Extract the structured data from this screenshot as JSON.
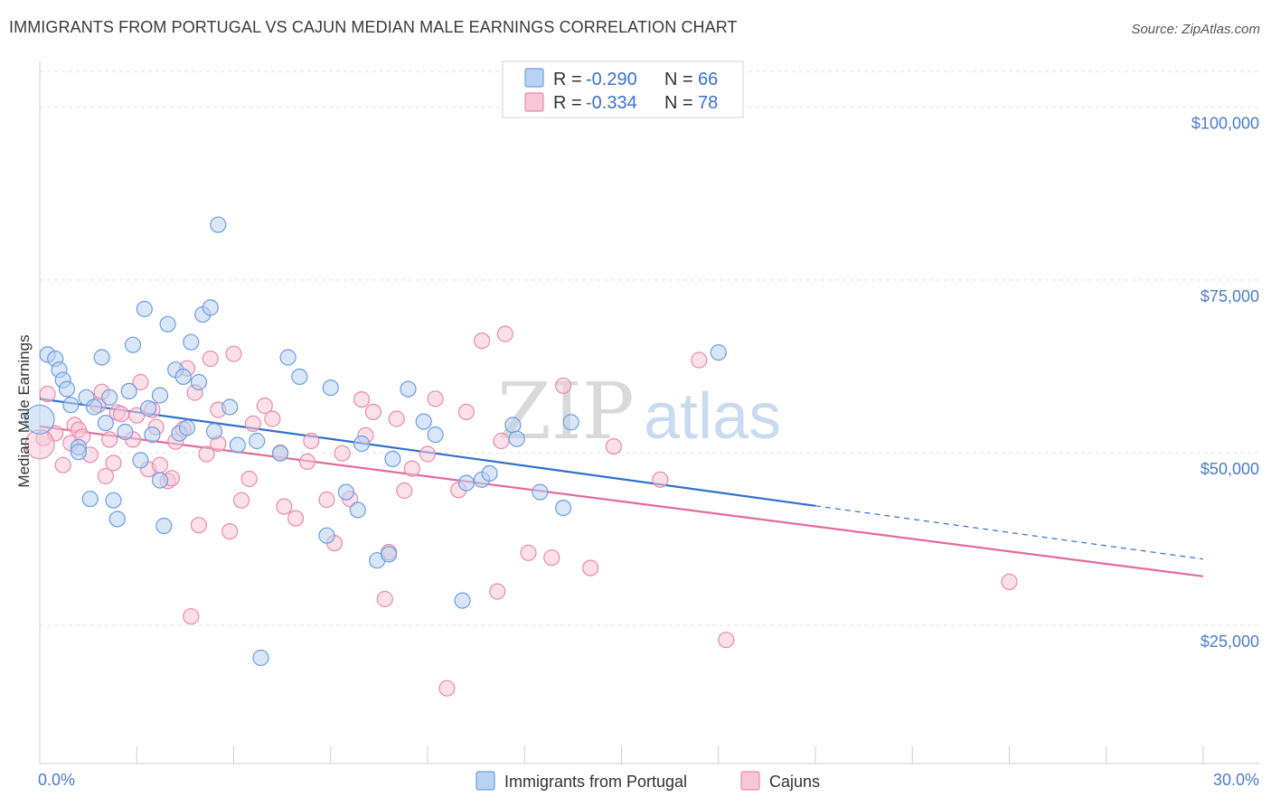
{
  "header": {
    "title": "IMMIGRANTS FROM PORTUGAL VS CAJUN MEDIAN MALE EARNINGS CORRELATION CHART",
    "source": "Source: ZipAtlas.com"
  },
  "watermark": {
    "zip": "ZIP",
    "atlas": "atlas"
  },
  "legend": {
    "r_label": "R =",
    "n_label": "N =",
    "rows": [
      {
        "r": "-0.290",
        "n": "66",
        "color": "#a9c8ef"
      },
      {
        "r": "-0.334",
        "n": "78",
        "color": "#f5b9cd"
      }
    ]
  },
  "chart_data": {
    "type": "scatter",
    "title": "IMMIGRANTS FROM PORTUGAL VS CAJUN MEDIAN MALE EARNINGS CORRELATION CHART",
    "xlabel": "",
    "ylabel": "Median Male Earnings",
    "xlim": [
      0,
      30
    ],
    "ylim": [
      5000,
      105000
    ],
    "x_tick_labels": [
      "0.0%",
      "30.0%"
    ],
    "y_ticks": [
      {
        "value": 25000,
        "label": "$25,000"
      },
      {
        "value": 50000,
        "label": "$50,000"
      },
      {
        "value": 75000,
        "label": "$75,000"
      },
      {
        "value": 100000,
        "label": "$100,000"
      }
    ],
    "grid": true,
    "legend_position": "top-center",
    "series": [
      {
        "name": "Immigrants from Portugal",
        "color": "#6b9ee0",
        "fill": "#b9d2f1",
        "line_color": "#2f6fd0",
        "trend": {
          "x0": 0.0,
          "y0": 57800,
          "x1": 20.0,
          "y1": 42300,
          "dash_to_x": 30.0,
          "dash_to_y": 34600
        },
        "points": [
          [
            0.0,
            54800
          ],
          [
            0.2,
            64200
          ],
          [
            0.4,
            63600
          ],
          [
            0.5,
            62000
          ],
          [
            0.6,
            60500
          ],
          [
            0.7,
            59200
          ],
          [
            0.8,
            56900
          ],
          [
            1.0,
            50800
          ],
          [
            1.0,
            50100
          ],
          [
            1.2,
            58000
          ],
          [
            1.3,
            43300
          ],
          [
            1.4,
            56600
          ],
          [
            1.6,
            63800
          ],
          [
            1.7,
            54300
          ],
          [
            1.8,
            58000
          ],
          [
            1.9,
            43100
          ],
          [
            2.0,
            40400
          ],
          [
            2.2,
            53000
          ],
          [
            2.3,
            58900
          ],
          [
            2.4,
            65600
          ],
          [
            2.6,
            48900
          ],
          [
            2.7,
            70800
          ],
          [
            2.8,
            56400
          ],
          [
            2.9,
            52600
          ],
          [
            3.1,
            58300
          ],
          [
            3.1,
            46000
          ],
          [
            3.2,
            39400
          ],
          [
            3.3,
            68600
          ],
          [
            3.5,
            62000
          ],
          [
            3.6,
            52800
          ],
          [
            3.7,
            61000
          ],
          [
            3.8,
            53600
          ],
          [
            3.9,
            66000
          ],
          [
            4.1,
            60200
          ],
          [
            4.2,
            70000
          ],
          [
            4.4,
            71000
          ],
          [
            4.5,
            53100
          ],
          [
            4.6,
            83000
          ],
          [
            4.9,
            56600
          ],
          [
            5.1,
            51100
          ],
          [
            5.6,
            51700
          ],
          [
            5.7,
            20300
          ],
          [
            6.2,
            49900
          ],
          [
            6.4,
            63800
          ],
          [
            6.7,
            61000
          ],
          [
            7.4,
            38000
          ],
          [
            7.5,
            59400
          ],
          [
            7.9,
            44300
          ],
          [
            8.2,
            41700
          ],
          [
            8.3,
            51300
          ],
          [
            8.7,
            34400
          ],
          [
            9.0,
            35300
          ],
          [
            9.1,
            49100
          ],
          [
            9.5,
            59200
          ],
          [
            9.9,
            54500
          ],
          [
            10.2,
            52600
          ],
          [
            10.9,
            28600
          ],
          [
            11.0,
            45600
          ],
          [
            11.4,
            46100
          ],
          [
            11.6,
            47000
          ],
          [
            12.2,
            54000
          ],
          [
            12.3,
            52000
          ],
          [
            12.9,
            44300
          ],
          [
            13.5,
            42000
          ],
          [
            13.7,
            54400
          ],
          [
            17.5,
            64500
          ]
        ]
      },
      {
        "name": "Cajuns",
        "color": "#e88aac",
        "fill": "#f7c7d7",
        "line_color": "#e36b98",
        "trend": {
          "x0": 0.0,
          "y0": 53800,
          "x1": 30.0,
          "y1": 32100
        },
        "points": [
          [
            0.1,
            52100
          ],
          [
            0.2,
            58500
          ],
          [
            0.4,
            52800
          ],
          [
            0.6,
            48200
          ],
          [
            0.8,
            51400
          ],
          [
            0.9,
            54000
          ],
          [
            1.0,
            53300
          ],
          [
            1.1,
            52300
          ],
          [
            1.3,
            49700
          ],
          [
            1.5,
            56900
          ],
          [
            1.6,
            58800
          ],
          [
            1.7,
            46600
          ],
          [
            1.8,
            51900
          ],
          [
            1.9,
            48500
          ],
          [
            2.0,
            55800
          ],
          [
            2.1,
            55600
          ],
          [
            2.4,
            51900
          ],
          [
            2.5,
            55400
          ],
          [
            2.6,
            60200
          ],
          [
            2.8,
            47600
          ],
          [
            2.9,
            56200
          ],
          [
            3.0,
            53700
          ],
          [
            3.1,
            48200
          ],
          [
            3.3,
            45900
          ],
          [
            3.4,
            46300
          ],
          [
            3.5,
            51600
          ],
          [
            3.7,
            53400
          ],
          [
            3.8,
            62200
          ],
          [
            3.9,
            26300
          ],
          [
            4.0,
            58700
          ],
          [
            4.1,
            39500
          ],
          [
            4.3,
            49800
          ],
          [
            4.4,
            63600
          ],
          [
            4.6,
            51300
          ],
          [
            4.6,
            56200
          ],
          [
            4.9,
            38600
          ],
          [
            5.0,
            64300
          ],
          [
            5.2,
            43100
          ],
          [
            5.4,
            46200
          ],
          [
            5.5,
            54200
          ],
          [
            5.8,
            56800
          ],
          [
            6.0,
            54900
          ],
          [
            6.2,
            50000
          ],
          [
            6.3,
            42200
          ],
          [
            6.6,
            40500
          ],
          [
            6.9,
            48700
          ],
          [
            7.0,
            51700
          ],
          [
            7.4,
            43200
          ],
          [
            7.6,
            36900
          ],
          [
            7.8,
            49900
          ],
          [
            8.0,
            43300
          ],
          [
            8.3,
            57700
          ],
          [
            8.4,
            52500
          ],
          [
            8.6,
            55900
          ],
          [
            8.9,
            28800
          ],
          [
            9.0,
            35600
          ],
          [
            9.2,
            54900
          ],
          [
            9.4,
            44500
          ],
          [
            9.6,
            47700
          ],
          [
            10.0,
            49800
          ],
          [
            10.2,
            57800
          ],
          [
            10.5,
            15900
          ],
          [
            10.8,
            44600
          ],
          [
            11.0,
            55900
          ],
          [
            11.4,
            66200
          ],
          [
            11.8,
            29900
          ],
          [
            11.9,
            51700
          ],
          [
            12.0,
            67200
          ],
          [
            12.6,
            35500
          ],
          [
            13.2,
            34800
          ],
          [
            13.5,
            59700
          ],
          [
            14.2,
            33300
          ],
          [
            14.8,
            50900
          ],
          [
            16.0,
            46100
          ],
          [
            17.0,
            63400
          ],
          [
            17.7,
            22900
          ],
          [
            25.0,
            31300
          ],
          [
            0.0,
            51200
          ]
        ]
      }
    ]
  }
}
